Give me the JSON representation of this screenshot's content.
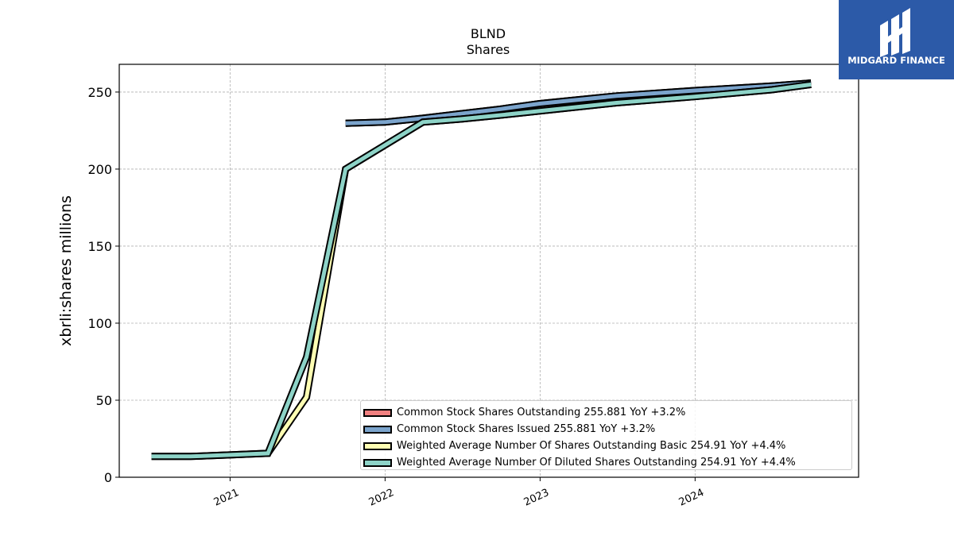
{
  "header": {
    "title": "BLND",
    "subtitle": "Shares"
  },
  "logo": {
    "brand_text": "MIDGARD FINANCE",
    "background": "#2c5aa8",
    "icon": "midgard-logo-mark"
  },
  "chart_data": {
    "type": "line",
    "title": "BLND",
    "subtitle": "Shares",
    "ylabel": "xbrli:shares millions",
    "xlabel": "",
    "ylim": [
      0,
      268
    ],
    "xlim": [
      "2020-04-15",
      "2025-01-20"
    ],
    "yticks": [
      0,
      50,
      100,
      150,
      200,
      250
    ],
    "xticks": [
      "2021",
      "2022",
      "2023",
      "2024"
    ],
    "grid": true,
    "legend_position": "lower-right",
    "series": [
      {
        "name": "Common Stock Shares Outstanding",
        "legend_text": "Common Stock Shares Outstanding  255.881 YoY +3.2%",
        "color": "#f08080",
        "points": [
          [
            "2021-09-30",
            229.7
          ],
          [
            "2021-12-31",
            230.5
          ],
          [
            "2022-03-31",
            233.0
          ],
          [
            "2022-06-30",
            236.0
          ],
          [
            "2022-09-30",
            239.0
          ],
          [
            "2022-12-31",
            242.5
          ],
          [
            "2023-06-30",
            247.5
          ],
          [
            "2023-12-31",
            251.0
          ],
          [
            "2024-06-30",
            254.0
          ],
          [
            "2024-09-30",
            255.881
          ]
        ]
      },
      {
        "name": "Common Stock Shares Issued",
        "legend_text": "Common Stock Shares Issued  255.881 YoY +3.2%",
        "color": "#7ba4cc",
        "points": [
          [
            "2021-09-30",
            229.7
          ],
          [
            "2021-12-31",
            230.5
          ],
          [
            "2022-03-31",
            233.0
          ],
          [
            "2022-06-30",
            236.0
          ],
          [
            "2022-09-30",
            239.0
          ],
          [
            "2022-12-31",
            242.5
          ],
          [
            "2023-06-30",
            247.5
          ],
          [
            "2023-12-31",
            251.0
          ],
          [
            "2024-06-30",
            254.0
          ],
          [
            "2024-09-30",
            255.881
          ]
        ]
      },
      {
        "name": "Weighted Average Number Of Shares Outstanding Basic",
        "legend_text": "Weighted Average Number Of Shares Outstanding Basic  254.91 YoY +4.4%",
        "color": "#ffffb3",
        "points": [
          [
            "2020-06-30",
            13.5
          ],
          [
            "2020-09-30",
            13.5
          ],
          [
            "2020-12-31",
            14.5
          ],
          [
            "2021-03-31",
            15.5
          ],
          [
            "2021-06-30",
            52.0
          ],
          [
            "2021-09-30",
            200.0
          ],
          [
            "2022-03-31",
            230.5
          ],
          [
            "2022-06-30",
            232.5
          ],
          [
            "2022-09-30",
            235.0
          ],
          [
            "2023-06-30",
            243.0
          ],
          [
            "2023-12-31",
            247.0
          ],
          [
            "2024-06-30",
            251.5
          ],
          [
            "2024-09-30",
            254.91
          ]
        ]
      },
      {
        "name": "Weighted Average Number Of Diluted Shares Outstanding",
        "legend_text": "Weighted Average Number Of Diluted Shares Outstanding  254.91 YoY +4.4%",
        "color": "#8dd3c7",
        "points": [
          [
            "2020-06-30",
            13.5
          ],
          [
            "2020-09-30",
            13.5
          ],
          [
            "2020-12-31",
            14.5
          ],
          [
            "2021-03-31",
            15.5
          ],
          [
            "2021-06-30",
            78.0
          ],
          [
            "2021-09-30",
            200.0
          ],
          [
            "2022-03-31",
            230.5
          ],
          [
            "2022-06-30",
            232.5
          ],
          [
            "2022-09-30",
            235.0
          ],
          [
            "2023-06-30",
            243.0
          ],
          [
            "2023-12-31",
            247.0
          ],
          [
            "2024-06-30",
            251.5
          ],
          [
            "2024-09-30",
            254.91
          ]
        ]
      }
    ]
  }
}
